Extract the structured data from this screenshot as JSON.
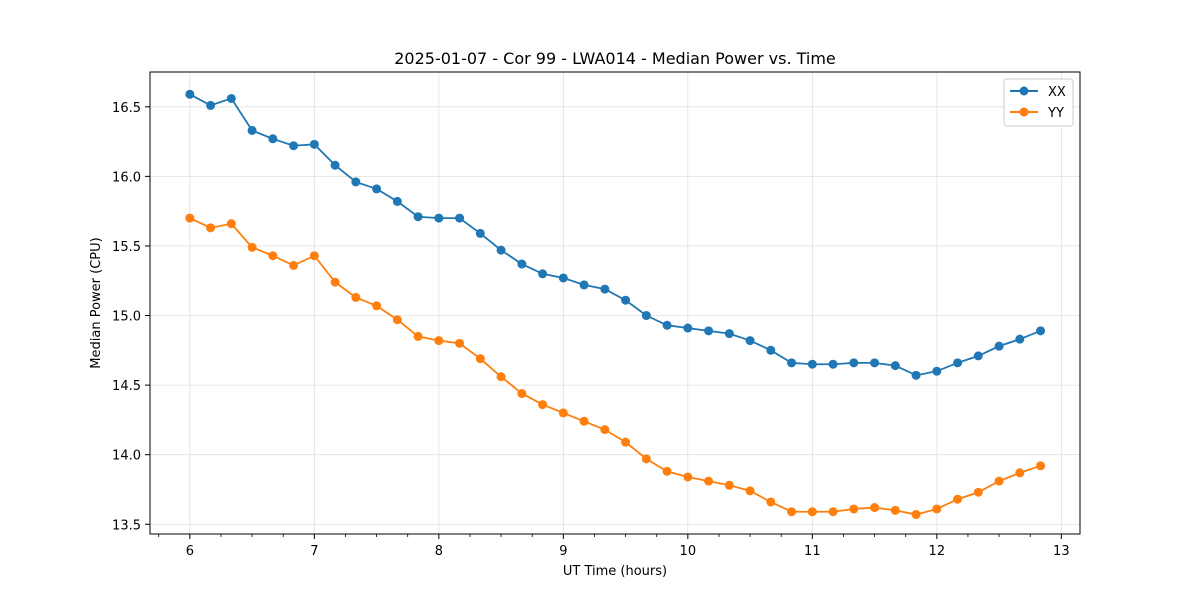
{
  "colors": {
    "xx": "#1f77b4",
    "yy": "#ff7f0e",
    "grid": "#e0e0e0",
    "axis": "#000000"
  },
  "chart_data": {
    "type": "line",
    "title": "2025-01-07 - Cor 99 - LWA014 - Median Power vs. Time",
    "xlabel": "UT Time (hours)",
    "ylabel": "Median Power (CPU)",
    "xlim": [
      5.68,
      13.15
    ],
    "ylim": [
      13.43,
      16.75
    ],
    "grid": true,
    "legend_position": "top-right",
    "x_ticks": [
      6,
      7,
      8,
      9,
      10,
      11,
      12,
      13
    ],
    "x_tick_labels": [
      "6",
      "7",
      "8",
      "9",
      "10",
      "11",
      "12",
      "13"
    ],
    "y_ticks": [
      13.5,
      14.0,
      14.5,
      15.0,
      15.5,
      16.0,
      16.5
    ],
    "y_tick_labels": [
      "13.5",
      "14.0",
      "14.5",
      "15.0",
      "15.5",
      "16.0",
      "16.5"
    ],
    "x": [
      6.0,
      6.1667,
      6.3333,
      6.5,
      6.6667,
      6.8333,
      7.0,
      7.1667,
      7.3333,
      7.5,
      7.6667,
      7.8333,
      8.0,
      8.1667,
      8.3333,
      8.5,
      8.6667,
      8.8333,
      9.0,
      9.1667,
      9.3333,
      9.5,
      9.6667,
      9.8333,
      10.0,
      10.1667,
      10.3333,
      10.5,
      10.6667,
      10.8333,
      11.0,
      11.1667,
      11.3333,
      11.5,
      11.6667,
      11.8333,
      12.0,
      12.1667,
      12.3333,
      12.5,
      12.6667,
      12.8333
    ],
    "series": [
      {
        "name": "XX",
        "color": "#1f77b4",
        "values": [
          16.59,
          16.51,
          16.56,
          16.33,
          16.27,
          16.22,
          16.23,
          16.08,
          15.96,
          15.91,
          15.82,
          15.71,
          15.7,
          15.7,
          15.59,
          15.47,
          15.37,
          15.3,
          15.27,
          15.22,
          15.19,
          15.11,
          15.0,
          14.93,
          14.91,
          14.89,
          14.87,
          14.82,
          14.75,
          14.66,
          14.65,
          14.65,
          14.66,
          14.66,
          14.64,
          14.57,
          14.6,
          14.66,
          14.71,
          14.78,
          14.83,
          14.89
        ]
      },
      {
        "name": "YY",
        "color": "#ff7f0e",
        "values": [
          15.7,
          15.63,
          15.66,
          15.49,
          15.43,
          15.36,
          15.43,
          15.24,
          15.13,
          15.07,
          14.97,
          14.85,
          14.82,
          14.8,
          14.69,
          14.56,
          14.44,
          14.36,
          14.3,
          14.24,
          14.18,
          14.09,
          13.97,
          13.88,
          13.84,
          13.81,
          13.78,
          13.74,
          13.66,
          13.59,
          13.59,
          13.59,
          13.61,
          13.62,
          13.6,
          13.57,
          13.61,
          13.68,
          13.73,
          13.81,
          13.87,
          13.92
        ]
      }
    ]
  }
}
